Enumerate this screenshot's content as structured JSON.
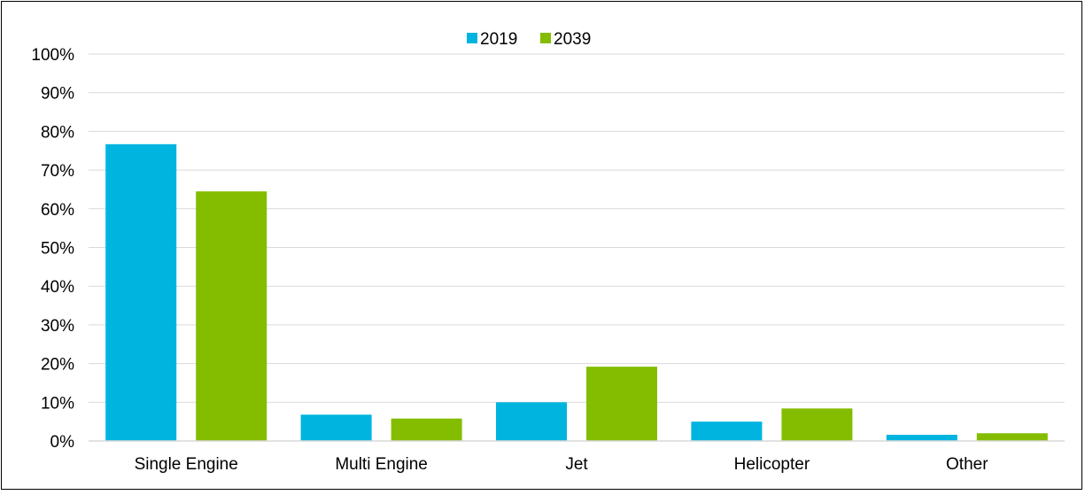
{
  "chart_data": {
    "type": "bar",
    "title": "",
    "xlabel": "",
    "ylabel": "",
    "categories": [
      "Single Engine",
      "Multi Engine",
      "Jet",
      "Helicopter",
      "Other"
    ],
    "series": [
      {
        "name": "2019",
        "color": "#00B4E0",
        "values": [
          76.7,
          6.8,
          10.0,
          5.0,
          1.6
        ]
      },
      {
        "name": "2039",
        "color": "#84BD00",
        "values": [
          64.5,
          5.8,
          19.2,
          8.4,
          2.0
        ]
      }
    ],
    "ylim": [
      0,
      100
    ],
    "yticks": [
      "0%",
      "10%",
      "20%",
      "30%",
      "40%",
      "50%",
      "60%",
      "70%",
      "80%",
      "90%",
      "100%"
    ],
    "grid": true,
    "gridline_color": "#d9d9d9",
    "legend_position": "top-center"
  }
}
